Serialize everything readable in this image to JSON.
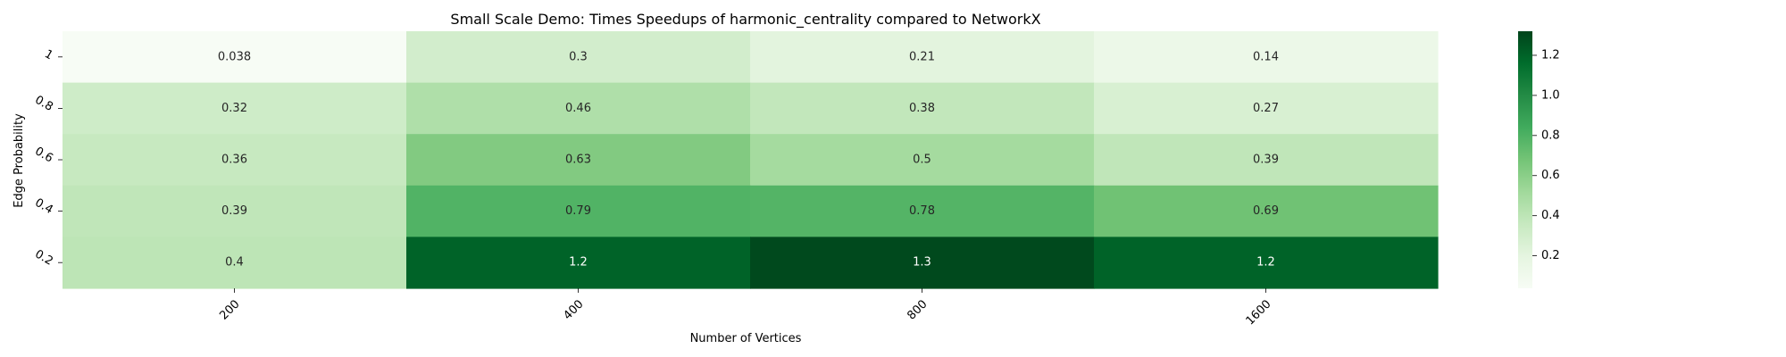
{
  "chart_data": {
    "type": "heatmap",
    "title": "Small Scale Demo: Times Speedups of harmonic_centrality compared to NetworkX",
    "xlabel": "Number of Vertices",
    "ylabel": "Edge Probability",
    "x_categories": [
      "200",
      "400",
      "800",
      "1600"
    ],
    "y_categories": [
      "1",
      "0.8",
      "0.6",
      "0.4",
      "0.2"
    ],
    "values": [
      [
        0.038,
        0.3,
        0.21,
        0.14
      ],
      [
        0.32,
        0.46,
        0.38,
        0.27
      ],
      [
        0.36,
        0.63,
        0.5,
        0.39
      ],
      [
        0.39,
        0.79,
        0.78,
        0.69
      ],
      [
        0.4,
        1.2,
        1.3,
        1.2
      ]
    ],
    "cell_labels": [
      [
        "0.038",
        "0.3",
        "0.21",
        "0.14"
      ],
      [
        "0.32",
        "0.46",
        "0.38",
        "0.27"
      ],
      [
        "0.36",
        "0.63",
        "0.5",
        "0.39"
      ],
      [
        "0.39",
        "0.79",
        "0.78",
        "0.69"
      ],
      [
        "0.4",
        "1.2",
        "1.3",
        "1.2"
      ]
    ],
    "colorbar": {
      "ticks": [
        "0.2",
        "0.4",
        "0.6",
        "0.8",
        "1.0",
        "1.2"
      ],
      "tick_values": [
        0.2,
        0.4,
        0.6,
        0.8,
        1.0,
        1.2
      ],
      "range": [
        0.038,
        1.32
      ]
    },
    "colormap": "Greens"
  }
}
